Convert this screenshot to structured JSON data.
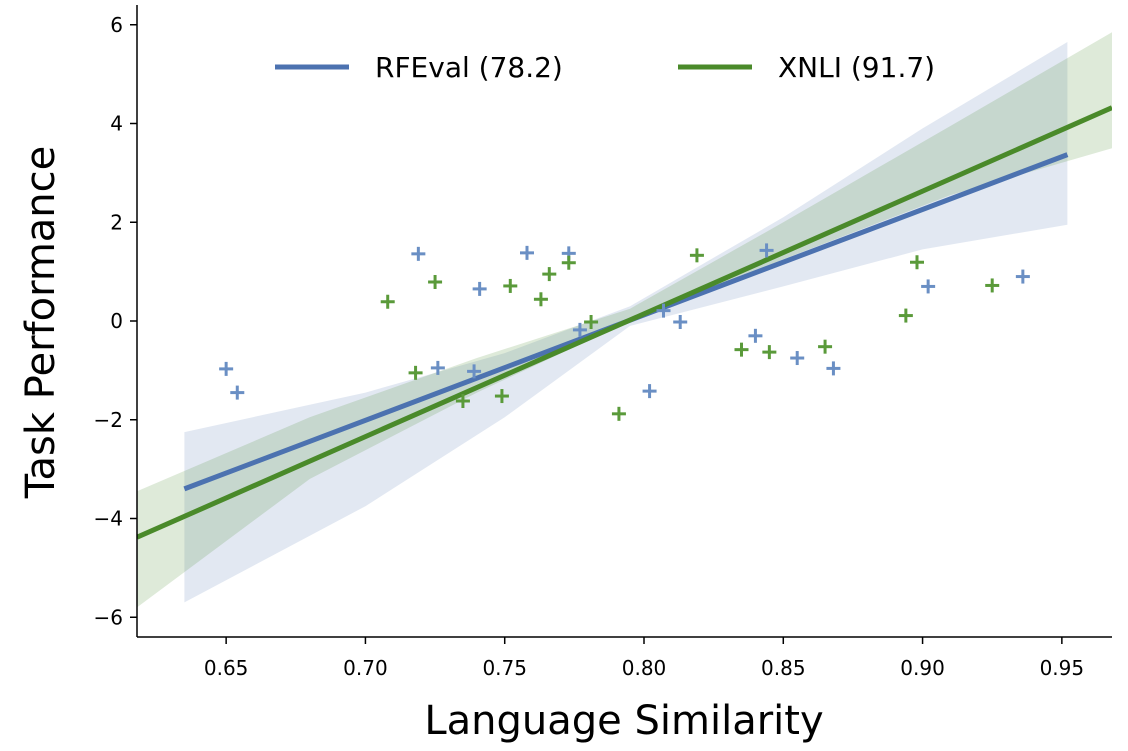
{
  "chart_data": {
    "type": "scatter",
    "title": "",
    "xlabel": "Language Similarity",
    "ylabel": "Task Performance",
    "xlim": [
      0.618,
      0.968
    ],
    "ylim": [
      -6.4,
      6.4
    ],
    "xticks": [
      0.65,
      0.7,
      0.75,
      0.8,
      0.85,
      0.9,
      0.95
    ],
    "xtick_labels": [
      "0.65",
      "0.70",
      "0.75",
      "0.80",
      "0.85",
      "0.90",
      "0.95"
    ],
    "yticks": [
      6,
      4,
      2,
      0,
      -2,
      -4,
      -6
    ],
    "ytick_labels": [
      "6",
      "4",
      "2",
      "0",
      "−2",
      "−4",
      "−6"
    ],
    "grid": false,
    "legend_position": "top",
    "marker": "plus",
    "series": [
      {
        "name": "RFEval (78.2)",
        "color": "#4c72b0",
        "marker_color": "#6a8fc4",
        "points": [
          {
            "x": 0.65,
            "y": -0.97
          },
          {
            "x": 0.654,
            "y": -1.45
          },
          {
            "x": 0.719,
            "y": 1.36
          },
          {
            "x": 0.726,
            "y": -0.95
          },
          {
            "x": 0.739,
            "y": -1.02
          },
          {
            "x": 0.741,
            "y": 0.65
          },
          {
            "x": 0.758,
            "y": 1.38
          },
          {
            "x": 0.773,
            "y": 1.37
          },
          {
            "x": 0.777,
            "y": -0.18
          },
          {
            "x": 0.802,
            "y": -1.42
          },
          {
            "x": 0.807,
            "y": 0.21
          },
          {
            "x": 0.813,
            "y": -0.02
          },
          {
            "x": 0.84,
            "y": -0.3
          },
          {
            "x": 0.844,
            "y": 1.43
          },
          {
            "x": 0.855,
            "y": -0.75
          },
          {
            "x": 0.868,
            "y": -0.96
          },
          {
            "x": 0.902,
            "y": 0.7
          },
          {
            "x": 0.936,
            "y": 0.9
          }
        ],
        "regression": {
          "x0": 0.635,
          "y0": -3.4,
          "x1": 0.952,
          "y1": 3.37
        },
        "ci_upper": [
          [
            0.635,
            -2.25
          ],
          [
            0.7,
            -1.45
          ],
          [
            0.75,
            -0.65
          ],
          [
            0.795,
            0.3
          ],
          [
            0.85,
            2.1
          ],
          [
            0.9,
            3.9
          ],
          [
            0.952,
            5.65
          ]
        ],
        "ci_lower": [
          [
            0.635,
            -5.7
          ],
          [
            0.7,
            -3.75
          ],
          [
            0.75,
            -1.95
          ],
          [
            0.795,
            -0.1
          ],
          [
            0.85,
            0.7
          ],
          [
            0.9,
            1.45
          ],
          [
            0.952,
            1.95
          ]
        ]
      },
      {
        "name": "XNLI (91.7)",
        "color": "#4a8a2a",
        "marker_color": "#5a9a3a",
        "points": [
          {
            "x": 0.708,
            "y": 0.39
          },
          {
            "x": 0.718,
            "y": -1.05
          },
          {
            "x": 0.725,
            "y": 0.79
          },
          {
            "x": 0.735,
            "y": -1.62
          },
          {
            "x": 0.749,
            "y": -1.52
          },
          {
            "x": 0.752,
            "y": 0.71
          },
          {
            "x": 0.763,
            "y": 0.44
          },
          {
            "x": 0.766,
            "y": 0.95
          },
          {
            "x": 0.773,
            "y": 1.18
          },
          {
            "x": 0.781,
            "y": -0.02
          },
          {
            "x": 0.791,
            "y": -1.88
          },
          {
            "x": 0.819,
            "y": 1.33
          },
          {
            "x": 0.835,
            "y": -0.58
          },
          {
            "x": 0.845,
            "y": -0.63
          },
          {
            "x": 0.865,
            "y": -0.52
          },
          {
            "x": 0.894,
            "y": 0.11
          },
          {
            "x": 0.898,
            "y": 1.19
          },
          {
            "x": 0.925,
            "y": 0.72
          }
        ],
        "regression": {
          "x0": 0.618,
          "y0": -4.38,
          "x1": 0.968,
          "y1": 4.32
        },
        "ci_upper": [
          [
            0.618,
            -3.45
          ],
          [
            0.68,
            -1.95
          ],
          [
            0.74,
            -0.75
          ],
          [
            0.795,
            0.25
          ],
          [
            0.85,
            2.0
          ],
          [
            0.91,
            3.95
          ],
          [
            0.968,
            5.85
          ]
        ],
        "ci_lower": [
          [
            0.618,
            -5.8
          ],
          [
            0.68,
            -3.2
          ],
          [
            0.74,
            -1.45
          ],
          [
            0.795,
            0.0
          ],
          [
            0.85,
            1.25
          ],
          [
            0.91,
            2.55
          ],
          [
            0.968,
            3.5
          ]
        ]
      }
    ]
  }
}
